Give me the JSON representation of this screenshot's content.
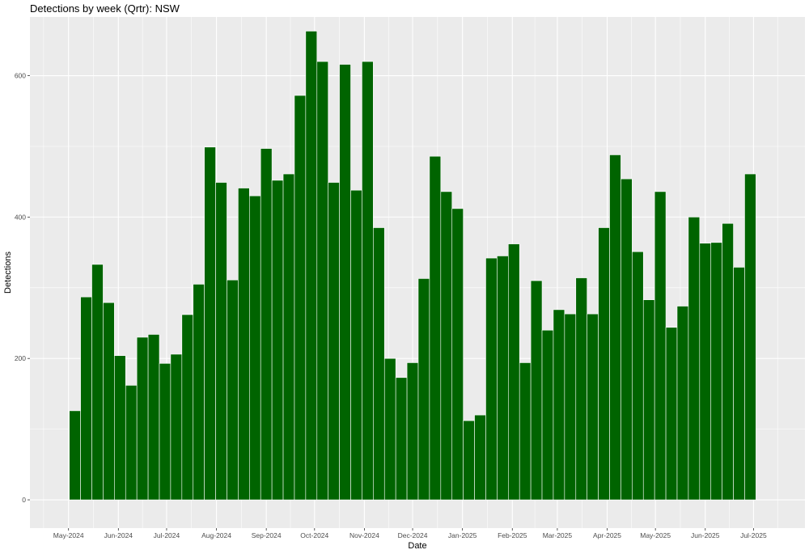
{
  "chart_data": {
    "type": "bar",
    "title": "Detections by week (Qrtr): NSW",
    "xlabel": "Date",
    "ylabel": "Detections",
    "ylim": [
      -40,
      683
    ],
    "xlim": [
      "2024-04-07",
      "2025-08-02"
    ],
    "grid": true,
    "bar_color": "#006400",
    "panel_color": "#ebebeb",
    "grid_color": "#ffffff",
    "x_ticks": [
      {
        "date": "2024-05-01",
        "label": "May-2024"
      },
      {
        "date": "2024-06-01",
        "label": "Jun-2024"
      },
      {
        "date": "2024-07-01",
        "label": "Jul-2024"
      },
      {
        "date": "2024-08-01",
        "label": "Aug-2024"
      },
      {
        "date": "2024-09-01",
        "label": "Sep-2024"
      },
      {
        "date": "2024-10-01",
        "label": "Oct-2024"
      },
      {
        "date": "2024-11-01",
        "label": "Nov-2024"
      },
      {
        "date": "2024-12-01",
        "label": "Dec-2024"
      },
      {
        "date": "2025-01-01",
        "label": "Jan-2025"
      },
      {
        "date": "2025-02-01",
        "label": "Feb-2025"
      },
      {
        "date": "2025-03-01",
        "label": "Mar-2025"
      },
      {
        "date": "2025-04-01",
        "label": "Apr-2025"
      },
      {
        "date": "2025-05-01",
        "label": "May-2025"
      },
      {
        "date": "2025-06-01",
        "label": "Jun-2025"
      },
      {
        "date": "2025-07-01",
        "label": "Jul-2025"
      }
    ],
    "y_ticks": [
      {
        "value": 0,
        "label": "0"
      },
      {
        "value": 200,
        "label": "200"
      },
      {
        "value": 400,
        "label": "400"
      },
      {
        "value": 600,
        "label": "600"
      }
    ],
    "x": [
      "2024-05-05",
      "2024-05-12",
      "2024-05-19",
      "2024-05-26",
      "2024-06-02",
      "2024-06-09",
      "2024-06-16",
      "2024-06-23",
      "2024-06-30",
      "2024-07-07",
      "2024-07-14",
      "2024-07-21",
      "2024-07-28",
      "2024-08-04",
      "2024-08-11",
      "2024-08-18",
      "2024-08-25",
      "2024-09-01",
      "2024-09-08",
      "2024-09-15",
      "2024-09-22",
      "2024-09-29",
      "2024-10-06",
      "2024-10-13",
      "2024-10-20",
      "2024-10-27",
      "2024-11-03",
      "2024-11-10",
      "2024-11-17",
      "2024-11-24",
      "2024-12-01",
      "2024-12-08",
      "2024-12-15",
      "2024-12-22",
      "2024-12-29",
      "2025-01-05",
      "2025-01-12",
      "2025-01-19",
      "2025-01-26",
      "2025-02-02",
      "2025-02-09",
      "2025-02-16",
      "2025-02-23",
      "2025-03-02",
      "2025-03-09",
      "2025-03-16",
      "2025-03-23",
      "2025-03-30",
      "2025-04-06",
      "2025-04-13",
      "2025-04-20",
      "2025-04-27",
      "2025-05-04",
      "2025-05-11",
      "2025-05-18",
      "2025-05-25",
      "2025-06-01",
      "2025-06-08",
      "2025-06-15",
      "2025-06-22",
      "2025-06-29"
    ],
    "values": [
      126,
      287,
      333,
      279,
      204,
      162,
      230,
      234,
      193,
      206,
      262,
      305,
      499,
      449,
      311,
      441,
      430,
      497,
      452,
      461,
      572,
      663,
      620,
      449,
      616,
      438,
      620,
      385,
      200,
      173,
      194,
      313,
      486,
      436,
      412,
      112,
      120,
      342,
      345,
      362,
      194,
      310,
      240,
      269,
      263,
      314,
      263,
      385,
      488,
      454,
      351,
      283,
      436,
      244,
      274,
      400,
      363,
      364,
      391,
      329,
      461
    ]
  }
}
